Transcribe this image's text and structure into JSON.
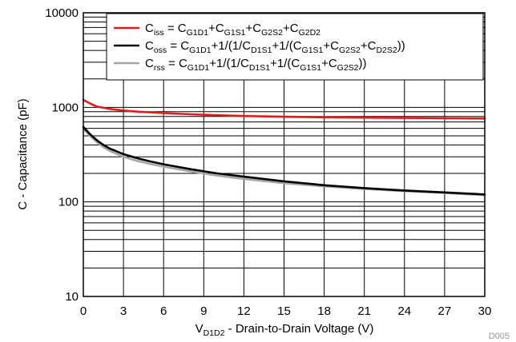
{
  "chart_data": {
    "type": "line",
    "figure_id": "D005",
    "xlabel": {
      "main": "V",
      "sub": "D1D2",
      "rest": " - Drain-to-Drain Voltage (V)"
    },
    "ylabel": "C - Capacitance (pF)",
    "xlim": [
      0,
      30
    ],
    "ylim": [
      10,
      10000
    ],
    "yscale": "log",
    "x_ticks": [
      "0",
      "3",
      "6",
      "9",
      "12",
      "15",
      "18",
      "21",
      "24",
      "27",
      "30"
    ],
    "y_ticks": [
      "10",
      "100",
      "1000",
      "10000"
    ],
    "grid": true,
    "legend_position": "top-right",
    "series": [
      {
        "name": "C_iss = C_G1D1 + C_G1S1 + C_G2S2 + C_G2D2",
        "legend_segments": [
          {
            "t": "C",
            "s": false
          },
          {
            "t": "iss",
            "s": true
          },
          {
            "t": " = C",
            "s": false
          },
          {
            "t": "G1D1",
            "s": true
          },
          {
            "t": "+C",
            "s": false
          },
          {
            "t": "G1S1",
            "s": true
          },
          {
            "t": "+C",
            "s": false
          },
          {
            "t": "G2S2",
            "s": true
          },
          {
            "t": "+C",
            "s": false
          },
          {
            "t": "G2D2",
            "s": true
          }
        ],
        "color": "#e41a1c",
        "x": [
          0,
          0.5,
          1,
          2,
          3,
          4,
          6,
          8,
          10,
          12,
          15,
          18,
          21,
          24,
          27,
          30
        ],
        "y": [
          1200,
          1100,
          1020,
          960,
          925,
          900,
          870,
          845,
          825,
          810,
          795,
          785,
          778,
          772,
          767,
          762
        ]
      },
      {
        "name": "C_oss = C_G1D1 + 1/(1/C_D1S1 + 1/(C_G1S1 + C_G2S2 + C_D2S2))",
        "legend_segments": [
          {
            "t": "C",
            "s": false
          },
          {
            "t": "oss",
            "s": true
          },
          {
            "t": " = C",
            "s": false
          },
          {
            "t": "G1D1",
            "s": true
          },
          {
            "t": "+1/(1/C",
            "s": false
          },
          {
            "t": "D1S1",
            "s": true
          },
          {
            "t": "+1/(C",
            "s": false
          },
          {
            "t": "G1S1",
            "s": true
          },
          {
            "t": "+C",
            "s": false
          },
          {
            "t": "G2S2",
            "s": true
          },
          {
            "t": "+C",
            "s": false
          },
          {
            "t": "D2S2",
            "s": true
          },
          {
            "t": "))",
            "s": false
          }
        ],
        "color": "#000000",
        "x": [
          0,
          0.5,
          1,
          1.5,
          2,
          3,
          4,
          5,
          6,
          8,
          10,
          12,
          15,
          18,
          21,
          24,
          27,
          30
        ],
        "y": [
          620,
          520,
          450,
          400,
          365,
          320,
          290,
          268,
          250,
          222,
          200,
          185,
          165,
          150,
          140,
          132,
          126,
          120
        ]
      },
      {
        "name": "C_rss = C_G1D1 + 1/(1/C_D1S1 + 1/(C_G1S1 + C_G2S2))",
        "legend_segments": [
          {
            "t": "C",
            "s": false
          },
          {
            "t": "rss",
            "s": true
          },
          {
            "t": " = C",
            "s": false
          },
          {
            "t": "G1D1",
            "s": true
          },
          {
            "t": "+1/(1/C",
            "s": false
          },
          {
            "t": "D1S1",
            "s": true
          },
          {
            "t": "+1/(C",
            "s": false
          },
          {
            "t": "G1S1",
            "s": true
          },
          {
            "t": "+C",
            "s": false
          },
          {
            "t": "G2S2",
            "s": true
          },
          {
            "t": "))",
            "s": false
          }
        ],
        "color": "#a6a6a6",
        "x": [
          0,
          0.5,
          1,
          1.5,
          2,
          3,
          4,
          5,
          6,
          8,
          10,
          12,
          15,
          18,
          21,
          24,
          27,
          30
        ],
        "y": [
          590,
          500,
          430,
          380,
          345,
          300,
          272,
          252,
          236,
          210,
          190,
          175,
          158,
          146,
          137,
          130,
          124,
          118
        ]
      }
    ]
  }
}
